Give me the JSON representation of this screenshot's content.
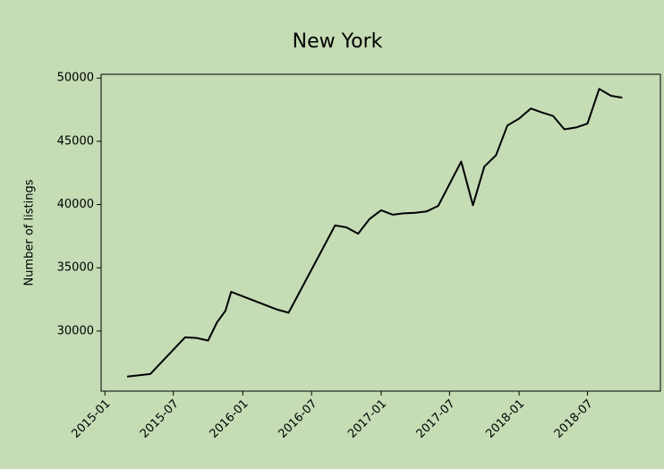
{
  "chart_data": {
    "type": "line",
    "title": "New York",
    "y_label": "Number of listings",
    "x": [
      "2015-03-01",
      "2015-05-01",
      "2015-08-01",
      "2015-09-01",
      "2015-10-01",
      "2015-10-25",
      "2015-11-16",
      "2015-12-01",
      "2016-04-01",
      "2016-05-01",
      "2016-09-01",
      "2016-10-01",
      "2016-11-01",
      "2016-12-01",
      "2017-01-01",
      "2017-02-01",
      "2017-03-01",
      "2017-04-01",
      "2017-05-01",
      "2017-06-01",
      "2017-08-01",
      "2017-09-01",
      "2017-10-01",
      "2017-11-01",
      "2017-12-01",
      "2018-01-01",
      "2018-02-01",
      "2018-03-01",
      "2018-04-01",
      "2018-05-01",
      "2018-06-01",
      "2018-07-01",
      "2018-08-01",
      "2018-09-01",
      "2018-10-01"
    ],
    "values": [
      26400,
      26600,
      29500,
      29450,
      29250,
      30700,
      31600,
      33100,
      31700,
      31450,
      38350,
      38200,
      37700,
      38850,
      39550,
      39200,
      39300,
      39350,
      39450,
      39900,
      43400,
      39950,
      43000,
      43900,
      46250,
      46800,
      47600,
      47300,
      47000,
      45950,
      46100,
      46400,
      49150,
      48600,
      48450
    ],
    "color": "#000000",
    "xlim": [
      "2014-12-22",
      "2019-01-10"
    ],
    "xticks": [
      "2015-01",
      "2015-07",
      "2016-01",
      "2016-07",
      "2017-01",
      "2017-07",
      "2018-01",
      "2018-07"
    ],
    "ylim": [
      25250,
      50300
    ],
    "yticks": [
      30000,
      35000,
      40000,
      45000,
      50000
    ]
  }
}
